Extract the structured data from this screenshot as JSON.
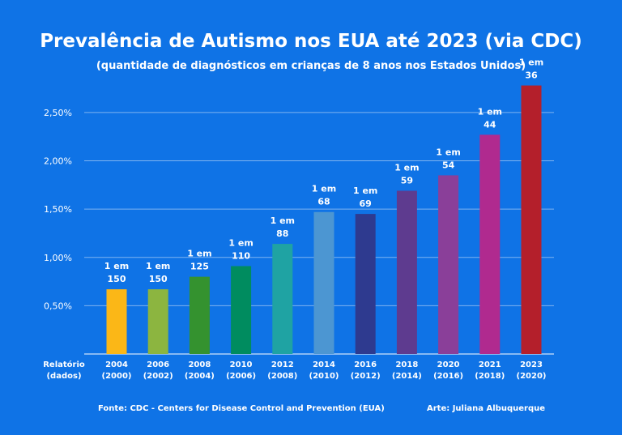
{
  "title": "Prevalência de Autismo nos EUA até 2023 (via CDC)",
  "subtitle": "(quantidade de diagnósticos em crianças de 8 anos nos Estados Unidos)",
  "footer": {
    "source": "Fonte: CDC - Centers for Disease Control and Prevention (EUA)",
    "art": "Arte: Juliana Albuquerque"
  },
  "chart_data": {
    "type": "bar",
    "xlabel": [
      "Relatório",
      "(dados)"
    ],
    "categories": [
      [
        "2004",
        "(2000)"
      ],
      [
        "2006",
        "(2002)"
      ],
      [
        "2008",
        "(2004)"
      ],
      [
        "2010",
        "(2006)"
      ],
      [
        "2012",
        "(2008)"
      ],
      [
        "2014",
        "(2010)"
      ],
      [
        "2016",
        "(2012)"
      ],
      [
        "2018",
        "(2014)"
      ],
      [
        "2020",
        "(2016)"
      ],
      [
        "2021",
        "(2018)"
      ],
      [
        "2023",
        "(2020)"
      ]
    ],
    "values": [
      0.67,
      0.67,
      0.8,
      0.91,
      1.14,
      1.47,
      1.45,
      1.69,
      1.85,
      2.27,
      2.78
    ],
    "data_labels": [
      [
        "1 em",
        "150"
      ],
      [
        "1 em",
        "150"
      ],
      [
        "1 em",
        "125"
      ],
      [
        "1 em",
        "110"
      ],
      [
        "1 em",
        "88"
      ],
      [
        "1 em",
        "68"
      ],
      [
        "1 em",
        "69"
      ],
      [
        "1 em",
        "59"
      ],
      [
        "1 em",
        "54"
      ],
      [
        "1 em",
        "44"
      ],
      [
        "1 em",
        "36"
      ]
    ],
    "bar_colors": [
      "#fbb717",
      "#8cb540",
      "#34922f",
      "#008c5f",
      "#1fa3a3",
      "#4c96d2",
      "#2e3a8f",
      "#5e3b8f",
      "#8a3f99",
      "#b02a8f",
      "#b41f2b"
    ],
    "yticks": [
      0.5,
      1.0,
      1.5,
      2.0,
      2.5
    ],
    "ytick_labels": [
      "0,50%",
      "1,00%",
      "1,50%",
      "2,00%",
      "2,50%"
    ],
    "ylim": [
      0,
      2.6
    ],
    "grid": true
  }
}
